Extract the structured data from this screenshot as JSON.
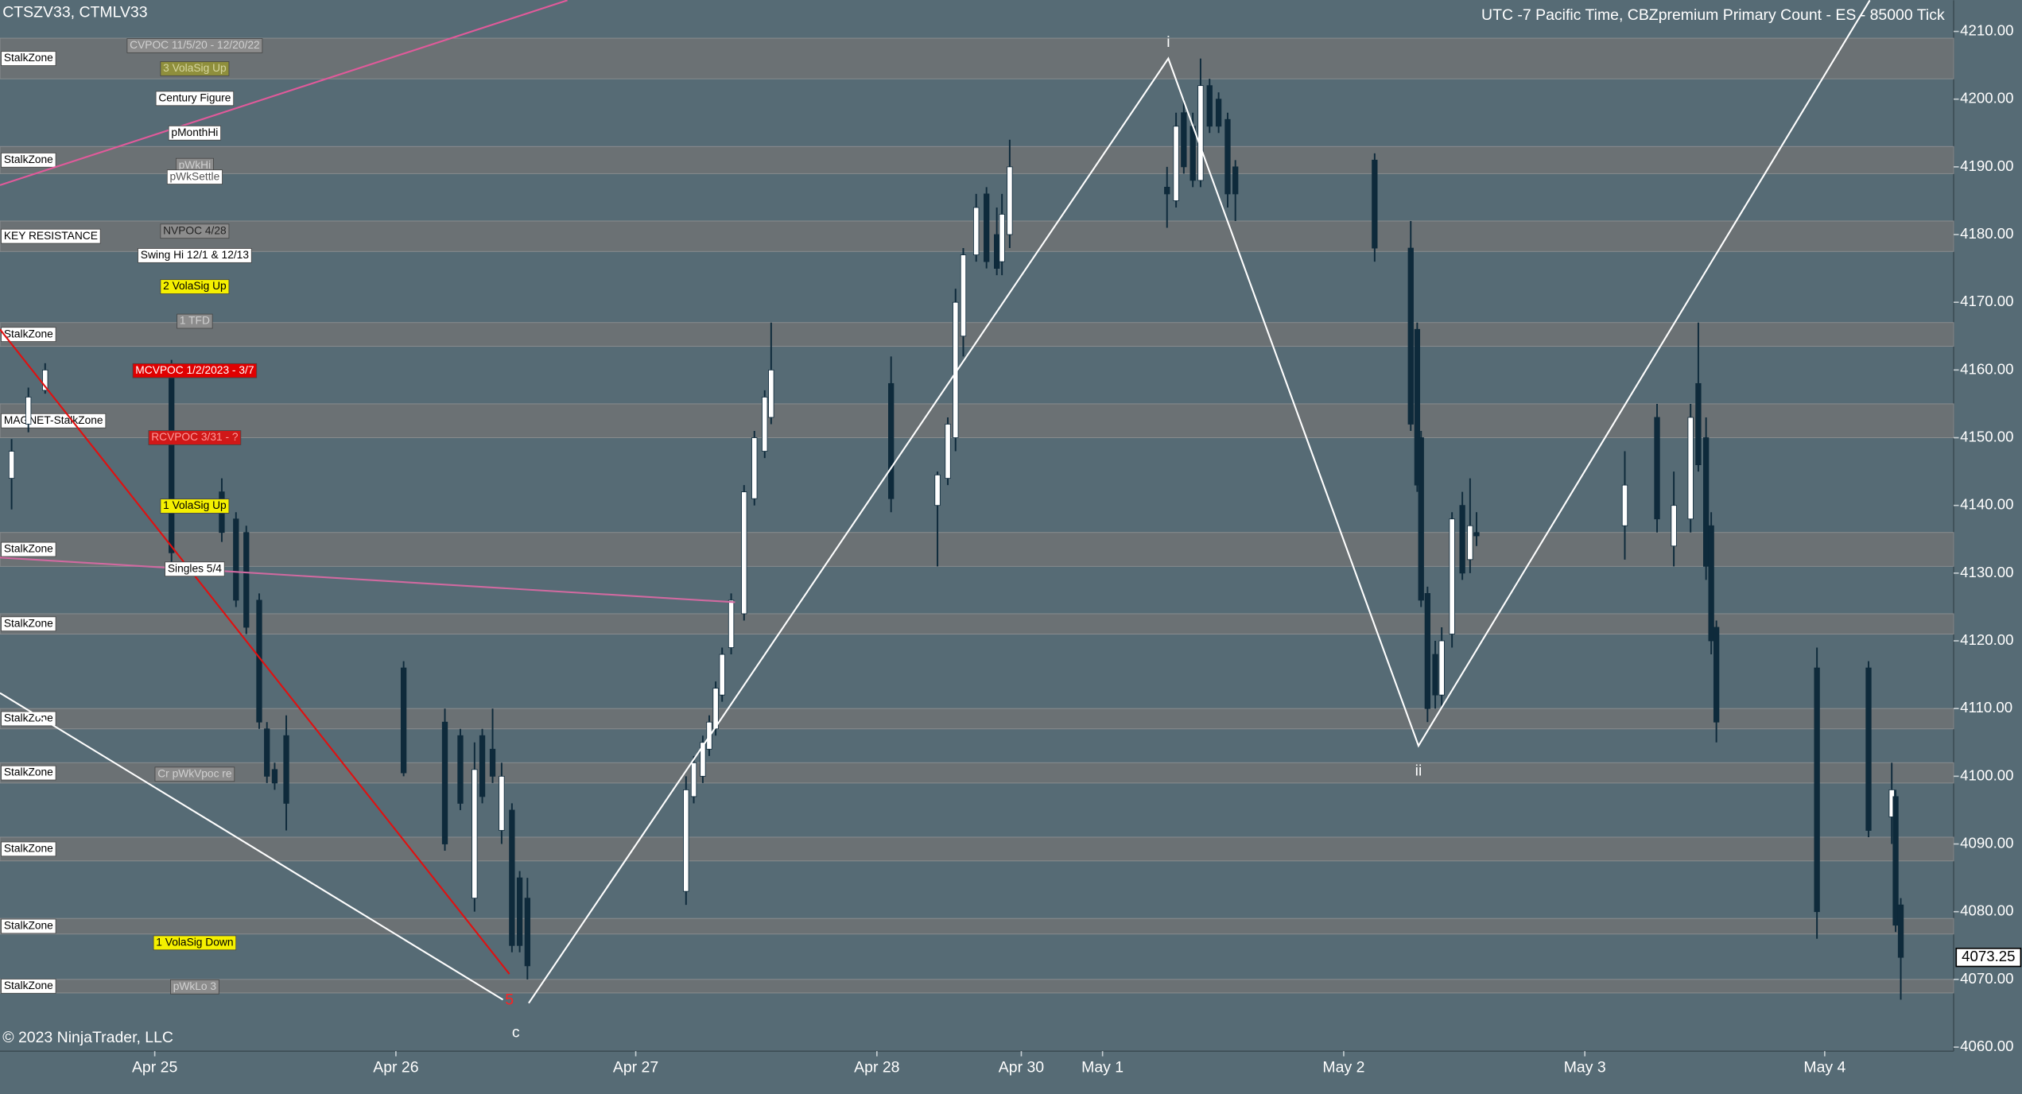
{
  "chart_data": {
    "type": "candlestick",
    "title": "CTSZV33, CTMLV33",
    "subtitle": "UTC -7 Pacific Time, CBZpremium Primary Count  - ES - 85000 Tick",
    "copyright": "© 2023 NinjaTrader, LLC",
    "up_color": "#ffffff",
    "down_color": "#0e2a3b",
    "wick_color": "#0e2a3b",
    "background": "#566b75",
    "zone_color": "#6f7274",
    "xlim": [
      0,
      1515
    ],
    "xticks": [
      {
        "value": 120,
        "label": "Apr 25"
      },
      {
        "value": 307,
        "label": "Apr 26"
      },
      {
        "value": 493,
        "label": "Apr 27"
      },
      {
        "value": 680,
        "label": "Apr 28"
      },
      {
        "value": 792,
        "label": "Apr 30"
      },
      {
        "value": 855,
        "label": "May 1"
      },
      {
        "value": 1042,
        "label": "May 2"
      },
      {
        "value": 1229,
        "label": "May 3"
      },
      {
        "value": 1415,
        "label": "May 4"
      }
    ],
    "ylim": [
      4059.4,
      4214.6
    ],
    "yticks": [
      {
        "value": 4060,
        "label": "4060.00"
      },
      {
        "value": 4070,
        "label": "4070.00"
      },
      {
        "value": 4080,
        "label": "4080.00"
      },
      {
        "value": 4090,
        "label": "4090.00"
      },
      {
        "value": 4100,
        "label": "4100.00"
      },
      {
        "value": 4110,
        "label": "4110.00"
      },
      {
        "value": 4120,
        "label": "4120.00"
      },
      {
        "value": 4130,
        "label": "4130.00"
      },
      {
        "value": 4140,
        "label": "4140.00"
      },
      {
        "value": 4150,
        "label": "4150.00"
      },
      {
        "value": 4160,
        "label": "4160.00"
      },
      {
        "value": 4170,
        "label": "4170.00"
      },
      {
        "value": 4180,
        "label": "4180.00"
      },
      {
        "value": 4190,
        "label": "4190.00"
      },
      {
        "value": 4200,
        "label": "4200.00"
      },
      {
        "value": 4210,
        "label": "4210.00"
      }
    ],
    "last_price": 4073.25,
    "x": [
      9,
      22,
      35,
      133,
      172,
      183,
      191,
      201,
      207,
      213,
      222,
      313,
      345,
      357,
      368,
      374,
      382,
      389,
      397,
      403,
      409,
      532,
      538,
      545,
      550,
      555,
      560,
      567,
      577,
      585,
      593,
      598,
      691,
      727,
      735,
      741,
      747,
      757,
      765,
      773,
      777,
      783,
      905,
      912,
      918,
      925,
      931,
      938,
      945,
      952,
      958,
      1066,
      1094,
      1099,
      1102,
      1107,
      1113,
      1118,
      1126,
      1134,
      1140,
      1145,
      1260,
      1285,
      1298,
      1311,
      1317,
      1323,
      1327,
      1331,
      1409,
      1449,
      1467,
      1470,
      1474
    ],
    "open": [
      4144,
      4152,
      4157,
      4160,
      4142,
      4138,
      4136,
      4126,
      4107,
      4101,
      4106,
      4116,
      4108,
      4106,
      4082,
      4106,
      4104,
      4092,
      4095,
      4085,
      4082,
      4083,
      4097,
      4100,
      4104,
      4107,
      4112,
      4119,
      4124,
      4141,
      4148,
      4153,
      4158,
      4140,
      4144,
      4150,
      4165,
      4177,
      4186,
      4180,
      4176,
      4180,
      4187,
      4185,
      4198,
      4196,
      4188,
      4202,
      4200,
      4197,
      4190,
      4191,
      4178,
      4166,
      4150,
      4127,
      4118,
      4112,
      4121,
      4140,
      4132,
      4136,
      4137,
      4153,
      4134,
      4138,
      4158,
      4150,
      4137,
      4122,
      4116,
      4116,
      4094,
      4097,
      4081
    ],
    "high": [
      4149.8,
      4157.4,
      4161,
      4161.5,
      4144,
      4139,
      4137,
      4127,
      4108,
      4102,
      4109,
      4117,
      4110,
      4107,
      4105,
      4107,
      4110,
      4102,
      4096,
      4086,
      4085,
      4100,
      4103,
      4106,
      4109,
      4114,
      4119,
      4127,
      4143,
      4151,
      4157,
      4167,
      4162,
      4145,
      4153,
      4172,
      4178,
      4186,
      4187,
      4184,
      4186,
      4194,
      4190,
      4198,
      4200,
      4198,
      4206,
      4203,
      4201,
      4198,
      4191,
      4192,
      4182,
      4167,
      4151,
      4128,
      4120,
      4122,
      4139,
      4142,
      4144,
      4139,
      4148,
      4155,
      4145,
      4155,
      4167,
      4153,
      4139,
      4123,
      4119,
      4117,
      4102,
      4098,
      4082
    ],
    "low": [
      4139.4,
      4150.8,
      4156.5,
      4131,
      4134.6,
      4125,
      4121,
      4107,
      4099,
      4098,
      4092,
      4100,
      4089,
      4095,
      4080,
      4096,
      4099,
      4090,
      4074,
      4074,
      4070,
      4081,
      4096,
      4099,
      4103,
      4106,
      4111,
      4118,
      4123,
      4140,
      4147,
      4152,
      4139,
      4131,
      4143,
      4148,
      4162,
      4176,
      4175,
      4174,
      4174,
      4178,
      4181,
      4184,
      4189,
      4187,
      4187,
      4195,
      4195,
      4184,
      4182,
      4176,
      4151,
      4142,
      4125,
      4108,
      4110,
      4110,
      4119,
      4129,
      4130,
      4134,
      4132,
      4136,
      4131,
      4136,
      4145,
      4129,
      4118,
      4105,
      4076,
      4091,
      4090,
      4077,
      4067
    ],
    "close": [
      4148,
      4156,
      4160,
      4133,
      4136,
      4126,
      4122,
      4108,
      4100,
      4099,
      4096,
      4100.5,
      4090,
      4096,
      4101,
      4097,
      4100,
      4100,
      4075,
      4075,
      4072,
      4098,
      4102,
      4105,
      4108,
      4113,
      4118,
      4126,
      4142,
      4150,
      4156,
      4160,
      4141,
      4144.5,
      4152,
      4170,
      4177,
      4184,
      4176,
      4175,
      4183,
      4190,
      4186,
      4196,
      4190,
      4188,
      4202,
      4196,
      4196,
      4186,
      4186,
      4178,
      4152,
      4143,
      4126,
      4110,
      4112,
      4120,
      4138,
      4130,
      4137,
      4135.5,
      4143,
      4138,
      4140,
      4153,
      4146,
      4131,
      4120,
      4108,
      4080,
      4092,
      4098,
      4078,
      4073.25
    ],
    "zones": [
      {
        "label": "StalkZone",
        "low": 4203,
        "high": 4209
      },
      {
        "label": "StalkZone",
        "low": 4189,
        "high": 4193
      },
      {
        "label": "KEY RESISTANCE",
        "low": 4177.5,
        "high": 4182
      },
      {
        "label": "StalkZone",
        "low": 4163.5,
        "high": 4167
      },
      {
        "label": "MAGNET-StalkZone",
        "low": 4150,
        "high": 4155
      },
      {
        "label": "StalkZone",
        "low": 4131,
        "high": 4136
      },
      {
        "label": "StalkZone",
        "low": 4121,
        "high": 4124
      },
      {
        "label": "StalkZone",
        "low": 4107,
        "high": 4110
      },
      {
        "label": "StalkZone",
        "low": 4099,
        "high": 4102
      },
      {
        "label": "StalkZone",
        "low": 4087.5,
        "high": 4091
      },
      {
        "label": "StalkZone",
        "low": 4076.7,
        "high": 4079
      },
      {
        "label": "StalkZone",
        "low": 4068,
        "high": 4070
      }
    ],
    "annotations": [
      {
        "text": "CVPOC 11/5/20 - 12/20/22",
        "level": 4207.9,
        "bg": "#8c8c8c",
        "fg": "#d0d0d0"
      },
      {
        "text": "3 VolaSig Up",
        "level": 4204.5,
        "bg": "#8f8f3c",
        "fg": "#d6d6a0"
      },
      {
        "text": "Century Figure",
        "level": 4200.1,
        "bg": "#ffffff",
        "fg": "#000000"
      },
      {
        "text": "pMonthHi",
        "level": 4195.0,
        "bg": "#ffffff",
        "fg": "#000000"
      },
      {
        "text": "pWkHi",
        "level": 4190.2,
        "bg": "#8c8c8c",
        "fg": "#d0d0d0"
      },
      {
        "text": "pWkSettle",
        "level": 4188.5,
        "bg": "#ffffff",
        "fg": "#555555"
      },
      {
        "text": "NVPOC 4/28",
        "level": 4180.5,
        "bg": "#8c8c8c",
        "fg": "#222222"
      },
      {
        "text": "Swing Hi 12/1 & 12/13",
        "level": 4176.9,
        "bg": "#ffffff",
        "fg": "#000000"
      },
      {
        "text": "2 VolaSig Up",
        "level": 4172.3,
        "bg": "#f5f000",
        "fg": "#000000"
      },
      {
        "text": "1 TFD",
        "level": 4167.2,
        "bg": "#8c8c8c",
        "fg": "#d0d0d0"
      },
      {
        "text": "MCVPOC 1/2/2023 - 3/7",
        "level": 4159.9,
        "bg": "#e00000",
        "fg": "#ffffff"
      },
      {
        "text": "RCVPOC 3/31 - ?",
        "level": 4150.0,
        "bg": "#d01818",
        "fg": "#ff9a9a"
      },
      {
        "text": "1 VolaSig Up",
        "level": 4139.9,
        "bg": "#f5f000",
        "fg": "#000000"
      },
      {
        "text": "Singles 5/4",
        "level": 4130.6,
        "bg": "#ffffff",
        "fg": "#000000"
      },
      {
        "text": "Cr pWkVpoc re",
        "level": 4100.3,
        "bg": "#8c8c8c",
        "fg": "#d0d0d0"
      },
      {
        "text": "1 VolaSig Down",
        "level": 4075.4,
        "bg": "#f5f000",
        "fg": "#000000"
      },
      {
        "text": "pWkLo 3",
        "level": 4068.9,
        "bg": "#8c8c8c",
        "fg": "#d0d0d0"
      }
    ],
    "drawings": [
      {
        "color": "#e05a9a",
        "x": [
          0,
          440
        ],
        "y": [
          4187.3,
          4214.6
        ]
      },
      {
        "color": "#d06aa0",
        "x": [
          0,
          570
        ],
        "y": [
          4132.3,
          4125.7
        ]
      },
      {
        "color": "#e01010",
        "x": [
          0,
          395
        ],
        "y": [
          4166.0,
          4070.8
        ]
      },
      {
        "color": "#ffffff",
        "x": [
          0,
          390
        ],
        "y": [
          4112.3,
          4067.0
        ]
      },
      {
        "color": "#ffffff",
        "x": [
          410,
          906,
          1100,
          1450
        ],
        "y": [
          4066.5,
          4206.0,
          4104.5,
          4214.6
        ]
      }
    ],
    "wave_labels": [
      {
        "text": "i",
        "x": 906,
        "y": 4208.3,
        "color": "#ffffff"
      },
      {
        "text": "ii",
        "x": 1100,
        "y": 4100.7,
        "color": "#ffffff"
      },
      {
        "text": "c",
        "x": 400,
        "y": 4062.1,
        "color": "#ffffff"
      },
      {
        "text": "5",
        "x": 395,
        "y": 4066.9,
        "color": "#ff2020"
      }
    ]
  }
}
